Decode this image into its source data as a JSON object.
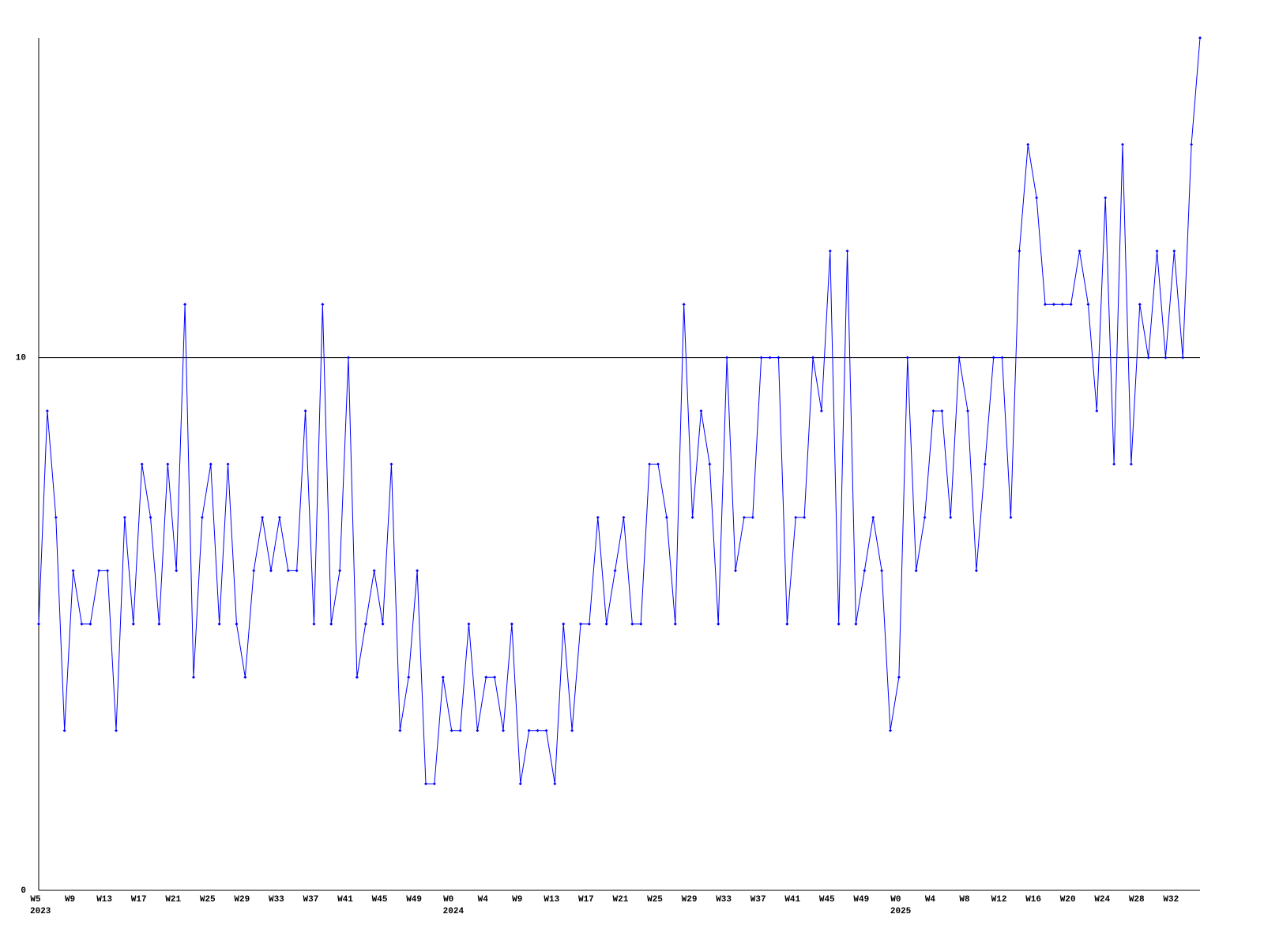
{
  "chart_data": {
    "type": "line",
    "categories": [
      "W5",
      null,
      null,
      null,
      "W9",
      null,
      null,
      null,
      "W13",
      null,
      null,
      null,
      "W17",
      null,
      null,
      null,
      "W21",
      null,
      null,
      null,
      "W25",
      null,
      null,
      null,
      "W29",
      null,
      null,
      null,
      "W33",
      null,
      null,
      null,
      "W37",
      null,
      null,
      null,
      "W41",
      null,
      null,
      null,
      "W45",
      null,
      null,
      null,
      "W49",
      null,
      null,
      null,
      "W0",
      null,
      null,
      null,
      "W4",
      null,
      null,
      null,
      "W9",
      null,
      null,
      null,
      "W13",
      null,
      null,
      null,
      "W17",
      null,
      null,
      null,
      "W21",
      null,
      null,
      null,
      "W25",
      null,
      null,
      null,
      "W29",
      null,
      null,
      null,
      "W33",
      null,
      null,
      null,
      "W37",
      null,
      null,
      null,
      "W41",
      null,
      null,
      null,
      "W45",
      null,
      null,
      null,
      "W49",
      null,
      null,
      null,
      "W0",
      null,
      null,
      null,
      "W4",
      null,
      null,
      null,
      "W8",
      null,
      null,
      null,
      "W12",
      null,
      null,
      null,
      "W16",
      null,
      null,
      null,
      "W20",
      null,
      null,
      null,
      "W24",
      null,
      null,
      null,
      "W28",
      null,
      null,
      null,
      "W32",
      null,
      null,
      null
    ],
    "groups": [
      {
        "label": "2023",
        "start": 0
      },
      {
        "label": "2024",
        "start": 48
      },
      {
        "label": "2025",
        "start": 100
      }
    ],
    "series": [
      {
        "color": "#0000ff",
        "values": [
          5,
          9,
          7,
          3,
          6,
          5,
          5,
          6,
          6,
          3,
          7,
          5,
          8,
          7,
          5,
          8,
          6,
          11,
          4,
          7,
          8,
          5,
          8,
          5,
          4,
          6,
          7,
          6,
          7,
          6,
          6,
          9,
          5,
          11,
          5,
          6,
          10,
          4,
          5,
          6,
          5,
          8,
          3,
          4,
          6,
          2,
          2,
          4,
          3,
          3,
          5,
          3,
          4,
          4,
          3,
          5,
          2,
          3,
          3,
          3,
          2,
          5,
          3,
          5,
          5,
          7,
          5,
          6,
          7,
          5,
          5,
          8,
          8,
          7,
          5,
          11,
          7,
          9,
          8,
          5,
          10,
          6,
          7,
          7,
          10,
          10,
          10,
          5,
          7,
          7,
          10,
          9,
          12,
          5,
          12,
          5,
          6,
          7,
          6,
          3,
          4,
          10,
          6,
          7,
          9,
          9,
          7,
          10,
          9,
          6,
          8,
          10,
          10,
          7,
          12,
          14,
          13,
          11,
          11,
          11,
          11,
          12,
          11,
          9,
          13,
          8,
          14,
          8,
          11,
          10,
          12,
          10,
          12,
          10,
          14,
          16
        ]
      }
    ],
    "ylim": [
      0,
      16
    ],
    "yticks": [
      0,
      10
    ],
    "grid": true
  }
}
